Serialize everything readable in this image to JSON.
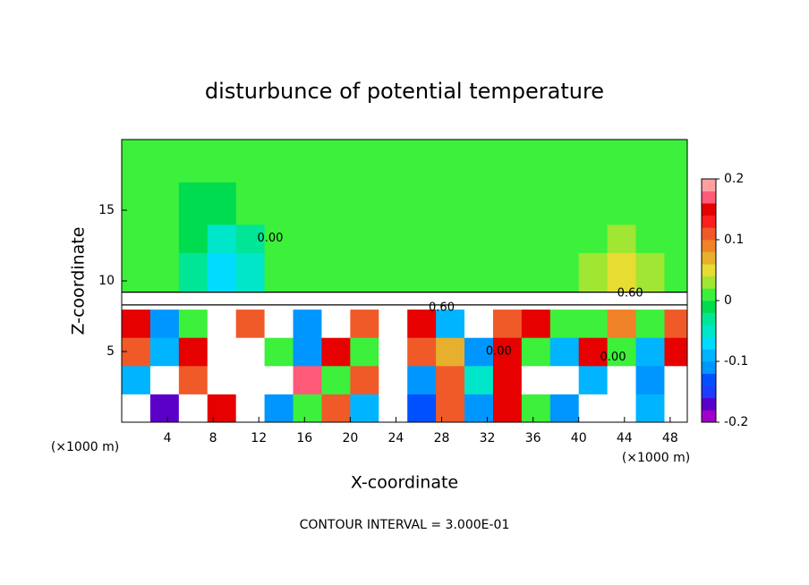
{
  "chart_data": {
    "type": "contour",
    "title": "disturbunce of potential temperature",
    "xlabel": "X-coordinate",
    "ylabel": "Z-coordinate",
    "x_unit_label": "(×1000 m)",
    "footer": "CONTOUR INTERVAL = 3.000E-01",
    "xlim": [
      0,
      49.5
    ],
    "ylim": [
      0,
      20
    ],
    "xticks": [
      4,
      8,
      12,
      16,
      20,
      24,
      28,
      32,
      36,
      40,
      44,
      48
    ],
    "yticks": [
      5,
      10,
      15
    ],
    "x_edges": [
      0,
      2.5,
      5,
      7.5,
      10,
      12.5,
      15,
      17.5,
      20,
      22.5,
      25,
      27.5,
      30,
      32.5,
      35,
      37.5,
      40,
      42.5,
      45,
      47.5,
      50
    ],
    "y_edges": [
      0,
      2,
      4,
      6,
      8,
      9.2,
      12,
      14,
      17,
      20
    ],
    "z": [
      [
        0.5,
        -0.18,
        0.5,
        0.14,
        0.5,
        -0.12,
        0.0,
        0.12,
        -0.1,
        0.5,
        -0.14,
        0.1,
        -0.12,
        0.14,
        0.0,
        -0.12,
        0.5,
        0.5,
        -0.1,
        0.5
      ],
      [
        -0.1,
        0.5,
        0.12,
        0.5,
        0.5,
        -0.3,
        0.16,
        0.0,
        0.12,
        0.5,
        -0.12,
        0.12,
        -0.06,
        0.14,
        0.5,
        0.5,
        -0.1,
        0.5,
        -0.12,
        0.5
      ],
      [
        0.12,
        -0.1,
        0.14,
        0.5,
        0.5,
        0.0,
        -0.12,
        0.14,
        0.0,
        0.5,
        0.1,
        0.06,
        -0.12,
        0.14,
        0.0,
        -0.1,
        0.14,
        0.0,
        -0.1,
        0.14
      ],
      [
        0.14,
        -0.12,
        0.0,
        0.5,
        0.12,
        0.5,
        -0.12,
        0.5,
        0.12,
        0.5,
        0.14,
        -0.1,
        0.5,
        0.1,
        0.14,
        0.0,
        0.0,
        0.08,
        0.0,
        0.12
      ],
      [
        0.5,
        0.5,
        0.5,
        0.5,
        0.5,
        0.5,
        0.5,
        0.5,
        0.5,
        0.5,
        0.5,
        0.5,
        0.5,
        0.5,
        0.5,
        0.5,
        0.5,
        0.5,
        0.5,
        0.5
      ],
      [
        0.01,
        0.01,
        -0.03,
        -0.07,
        -0.05,
        0.01,
        0.01,
        0.01,
        0.01,
        0.01,
        0.01,
        0.01,
        0.01,
        0.01,
        0.01,
        0.01,
        0.03,
        0.05,
        0.03,
        0.01
      ],
      [
        0.01,
        0.01,
        -0.02,
        -0.04,
        -0.03,
        0.01,
        0.01,
        0.01,
        0.01,
        0.01,
        0.01,
        0.01,
        0.01,
        0.01,
        0.01,
        0.01,
        0.01,
        0.03,
        0.01,
        0.01
      ],
      [
        0.01,
        0.01,
        -0.01,
        -0.02,
        0.01,
        0.01,
        0.01,
        0.01,
        0.01,
        0.01,
        0.01,
        0.01,
        0.01,
        0.01,
        0.01,
        0.01,
        0.01,
        0.01,
        0.01,
        0.01
      ],
      [
        0.01,
        0.01,
        0.01,
        0.01,
        0.01,
        0.01,
        0.01,
        0.01,
        0.01,
        0.01,
        0.01,
        0.01,
        0.01,
        0.01,
        0.01,
        0.01,
        0.01,
        0.01,
        0.01,
        0.01
      ]
    ],
    "clim": [
      -0.2,
      0.2
    ],
    "colorbar_ticks": [
      -0.2,
      -0.1,
      0,
      0.1,
      0.2
    ],
    "colors": [
      "#a000c8",
      "#5a00c8",
      "#1e3cff",
      "#0050ff",
      "#0096ff",
      "#00b4ff",
      "#00dcff",
      "#00e6c8",
      "#00e696",
      "#00dc50",
      "#3cf03c",
      "#a0e632",
      "#e6dc32",
      "#e6af2d",
      "#f08228",
      "#f05a28",
      "#fa1e1e",
      "#e60000",
      "#ff5a78",
      "#ffa0a0"
    ],
    "out_of_range_color": "#ffffff",
    "contour_labels": [
      {
        "text": "0.00",
        "x": 13,
        "y": 13
      },
      {
        "text": "0.60",
        "x": 44.5,
        "y": 9.1
      },
      {
        "text": "0.60",
        "x": 28,
        "y": 8.1
      },
      {
        "text": "0.00",
        "x": 33,
        "y": 5
      },
      {
        "text": "0.00",
        "x": 43,
        "y": 4.6
      }
    ]
  }
}
